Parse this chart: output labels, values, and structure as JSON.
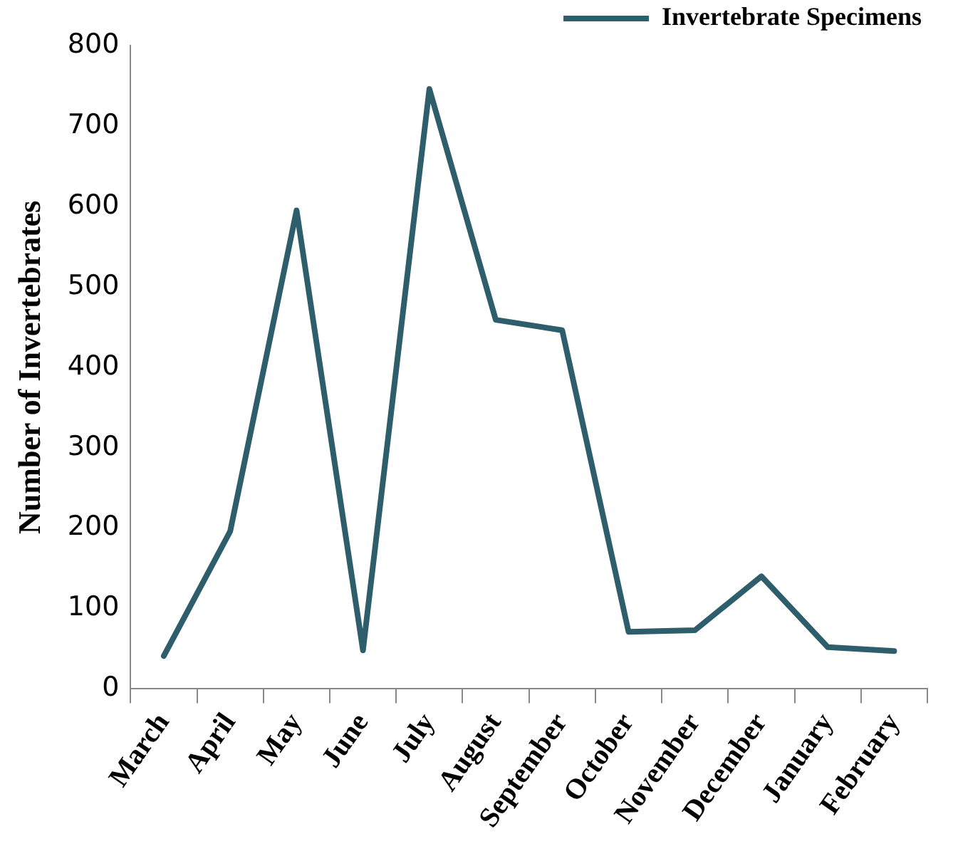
{
  "chart_data": {
    "type": "line",
    "ylabel": "Number of Invertebrates",
    "categories": [
      "March",
      "April",
      "May",
      "June",
      "July",
      "August",
      "September",
      "October",
      "November",
      "December",
      "January",
      "February"
    ],
    "series": [
      {
        "name": "Invertebrate Specimens",
        "color": "#2e5e6b",
        "values": [
          41,
          196,
          595,
          48,
          746,
          459,
          446,
          71,
          73,
          140,
          52,
          47
        ]
      }
    ],
    "ylim": [
      0,
      800
    ],
    "yticks": [
      0,
      100,
      200,
      300,
      400,
      500,
      600,
      700,
      800
    ],
    "grid": false,
    "legend": "top right",
    "marker": "none",
    "line_style": "solid"
  }
}
